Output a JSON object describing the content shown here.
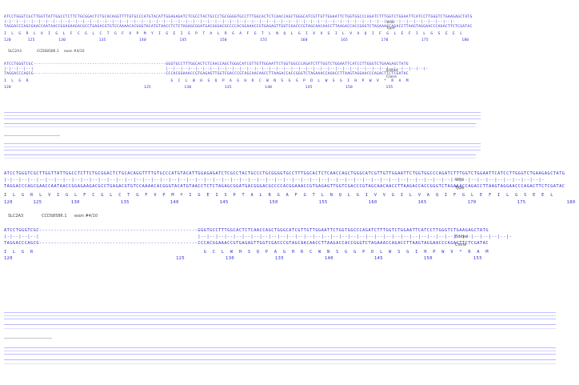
{
  "block1": {
    "wild_top": "ATCCTGGGTCGCTTGGTTATTGGCCTCTTCTGCGGACTCTGCACAGGTTTTGTGCCCATGTACATTGGAGAGATCTCGCCTACTGCCCTGCGGGGTGCCTTTGGCACTCTCAACCAGCTGGGCATCGTTGTTGGAATTCTGGTGGCCCAGATCTTTGGTCTGGAATTCATCCTTGGGTCTGAAGAGCTATG",
    "wild_marks": "|-|--|--|--|--|--|--|--|--|--|--|--|--|--|--|--|--|--|--|--|--|--|--|--|--|--|--|--|--|--|--|--|--|--|--|--|--|--|--|--|--|--|--|--|--|--|--|--|--|--|--|--|--|--|--|--|--|--|--|--|--|-",
    "wild_bottom": "TAGGACCCAGCGAACCAATAACCGGAGAAGACGCCTGAGACGTGTCCAAAACACGGGTACATGTAACCTCTCTAGAGCGGATGACGGGACGCCCCACGGAAACCGTGAGAGTTGGTCGACCCGTAGCAACAACCTTAAGACCACCGGGTCTAGAAACCAGACCTTAAGTAGGAACCCAGACTTCTCGATAC",
    "wild_aa": "I  L  G  R  L  V  I  G  L  F  C  G  L  C  T  G  F  V  P  M  Y  I  G  E  I  S  P  T  A  L  R  G  A  F  G  T  L  N  Q  L  G  I  V  V  G  I  L  V  A  Q  I  F  G  L  E  F  I  L  G  S  E  E  L",
    "wild_nums": "120       125          130              135              140              145              150              155              160              165              170              175              180",
    "label_wild": "Wild",
    "label_type": "Type",
    "gene": "SLC2A3",
    "ccds": "CCDS8586.1",
    "exon": "exon #4/10",
    "ed_top": "ATCCTGGGTCGC------------------------------------------------------GGGTGCCTTTGGCACTCTCAACCAGCTGGGCATCGTTGTTGGAATTCTGGTGGCCCAGATCTTTGGTCTGGAATTCATCCTTGGGTCTGAAGAGCTATG",
    "ed_marks": "|-|--|--|--|                                                      |--|--|--|--|--|--|--|--|--|--|--|--|--|--|--|--|--|--|--|--|--|--|--|--|--|--|--|--|--|--|--|--|--|--|--|-",
    "ed_bottom": "TAGGACCCAGCG------------------------------------------------------CCCACGGAAACCGTGAGAGTTGGTCGACCCGTAGCAACAACCTTAAGACCACCGGGTCTAGAAACCAGACCTTAAGTAGGAACCCAGACTTCTCGATAC",
    "ed_aa": "I  L  G  R                                                          G  C  L  W  H  S  Q  P  A  G  H  R  C  W  N  S  G  G  P  D  L  W  S  G  I  H  P  W  V  *  R  A  M",
    "ed_nums": "120                                                        125              130              135              140              145              150              155",
    "label_edited": "Edited",
    "label_clone": "Clone"
  }
}
